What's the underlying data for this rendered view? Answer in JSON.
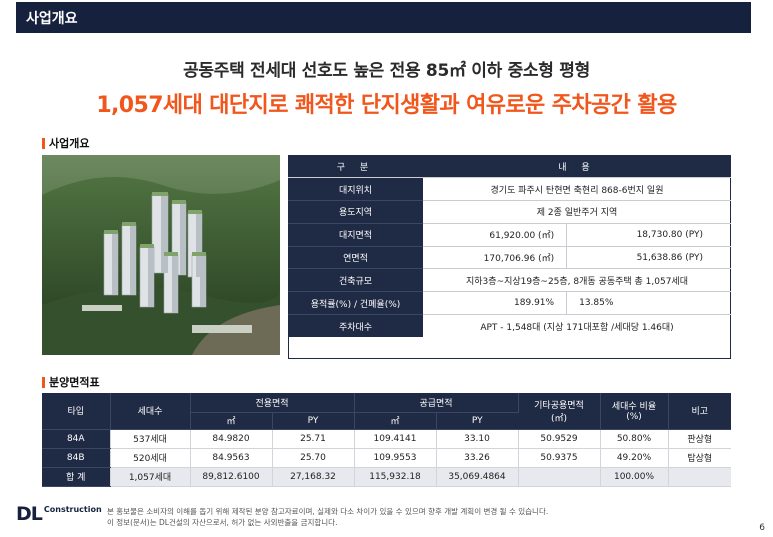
{
  "header": {
    "title": "사업개요"
  },
  "headline": {
    "line1": "공동주택 전세대 선호도 높은 전용 85㎡ 이하 중소형 평형",
    "line2": "1,057세대 대단지로 쾌적한 단지생활과 여유로운 주차공간 활용"
  },
  "overview_section": {
    "title": "사업개요",
    "header": {
      "category": "구 분",
      "content": "내 용"
    },
    "rows": [
      {
        "label": "대지위치",
        "value": "경기도 파주시 탄현면 축현리 868-6번지 일원"
      },
      {
        "label": "용도지역",
        "value": "제 2종 일반주거 지역"
      },
      {
        "label": "대지면적",
        "value_left": "61,920.00 (㎡)",
        "value_right": "18,730.80 (PY)"
      },
      {
        "label": "연면적",
        "value_left": "170,706.96 (㎡)",
        "value_right": "51,638.86 (PY)"
      },
      {
        "label": "건축규모",
        "value": "지하3층~지상19층~25층, 8개동 공동주택 총 1,057세대"
      },
      {
        "label": "용적률(%) / 건폐율(%)",
        "value_left": "189.91%",
        "value_right": "13.85%"
      },
      {
        "label": "주차대수",
        "value": "APT - 1,548대 (지상 171대포함 /세대당 1.46대)"
      }
    ]
  },
  "area_section": {
    "title": "분양면적표",
    "headers": {
      "type": "타입",
      "units": "세대수",
      "exclusive": "전용면적",
      "supply": "공급면적",
      "other_common": "기타공용면적",
      "other_common_unit": "(㎡)",
      "ratio": "세대수 비율",
      "ratio_unit": "(%)",
      "note": "비고",
      "sqm": "㎡",
      "py": "PY"
    },
    "rows": [
      {
        "type": "84A",
        "units": "537세대",
        "ex_sqm": "84.9820",
        "ex_py": "25.71",
        "sup_sqm": "109.4141",
        "sup_py": "33.10",
        "other": "50.9529",
        "ratio": "50.80%",
        "note": "판상형"
      },
      {
        "type": "84B",
        "units": "520세대",
        "ex_sqm": "84.9563",
        "ex_py": "25.70",
        "sup_sqm": "109.9553",
        "sup_py": "33.26",
        "other": "50.9375",
        "ratio": "49.20%",
        "note": "탑상형"
      },
      {
        "type": "합 계",
        "units": "1,057세대",
        "ex_sqm": "89,812.6100",
        "ex_py": "27,168.32",
        "sup_sqm": "115,932.18",
        "sup_py": "35,069.4864",
        "other": "",
        "ratio": "100.00%",
        "note": ""
      }
    ]
  },
  "footer": {
    "logo_mark": "DL",
    "logo_text": "Construction",
    "disclaimer_line1": "본 홍보물은 소비자의 이해를 돕기 위해 제작된 분양 참고자료이며, 실제와 다소 차이가 있을 수 있으며 향후 개발 계획이 변경 될 수 있습니다.",
    "disclaimer_line2": "이 정보(문서)는 DL건설의 자산으로서, 허가 없는 사외반출을 금지합니다.",
    "page_number": "6"
  },
  "colors": {
    "navy": "#1f2a44",
    "accent_orange": "#f1571c",
    "header_bg": "#16223d"
  },
  "icons": {
    "section_marker": "orange-bar-icon"
  }
}
